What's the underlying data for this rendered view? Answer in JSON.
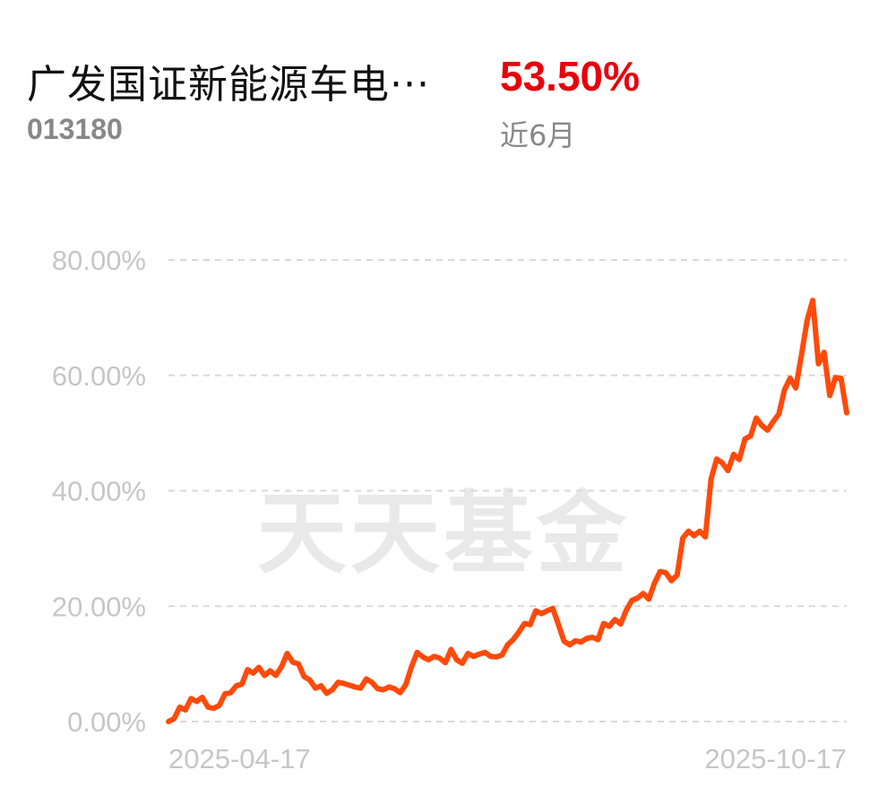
{
  "header": {
    "fund_name": "广发国证新能源车电···",
    "fund_code": "013180",
    "return_value": "53.50%",
    "return_period": "近6月"
  },
  "watermark": "天天基金",
  "colors": {
    "line": "#ff4a0a",
    "positive": "#e8000b",
    "grid": "#d9d9d9",
    "axis_text": "#c6c6c6",
    "watermark": "#e9e9e9"
  },
  "chart_data": {
    "type": "line",
    "title": "",
    "xlabel": "",
    "ylabel": "",
    "ylim": [
      0,
      80
    ],
    "yticks": [
      "0.00%",
      "20.00%",
      "40.00%",
      "60.00%",
      "80.00%"
    ],
    "ytick_values": [
      0,
      20,
      40,
      60,
      80
    ],
    "x_tick_labels": [
      "2025-04-17",
      "2025-10-17"
    ],
    "x_range": [
      "2025-04-17",
      "2025-10-17"
    ],
    "grid": true,
    "series": [
      {
        "values": [
          0.0,
          0.5,
          2.5,
          2.0,
          4.0,
          3.5,
          4.2,
          2.5,
          2.3,
          2.8,
          4.8,
          5.0,
          6.2,
          6.5,
          9.0,
          8.4,
          9.4,
          8.0,
          8.8,
          8.0,
          9.5,
          11.8,
          10.3,
          10.0,
          7.8,
          7.2,
          5.8,
          6.2,
          4.9,
          5.5,
          6.8,
          6.6,
          6.3,
          6.0,
          5.8,
          7.4,
          6.8,
          5.7,
          5.5,
          6.0,
          5.7,
          5.0,
          6.4,
          9.5,
          12.0,
          11.2,
          10.7,
          11.3,
          11.0,
          10.2,
          12.5,
          10.7,
          10.1,
          11.8,
          11.3,
          11.7,
          12.0,
          11.3,
          11.2,
          11.5,
          13.3,
          14.2,
          15.5,
          17.0,
          16.8,
          19.2,
          18.7,
          19.2,
          19.6,
          16.8,
          13.9,
          13.3,
          14.0,
          13.8,
          14.4,
          14.6,
          14.2,
          17.0,
          16.5,
          17.7,
          16.9,
          19.3,
          21.0,
          21.4,
          22.2,
          21.2,
          24.0,
          26.0,
          25.8,
          24.4,
          25.4,
          31.8,
          33.0,
          32.2,
          33.0,
          32.0,
          42.0,
          45.5,
          44.8,
          43.5,
          46.3,
          45.4,
          49.0,
          49.5,
          52.6,
          51.3,
          50.5,
          52.0,
          53.3,
          57.5,
          59.5,
          57.8,
          63.5,
          69.5,
          73.0,
          62.0,
          64.0,
          56.5,
          59.6,
          59.5,
          53.5
        ]
      }
    ]
  }
}
